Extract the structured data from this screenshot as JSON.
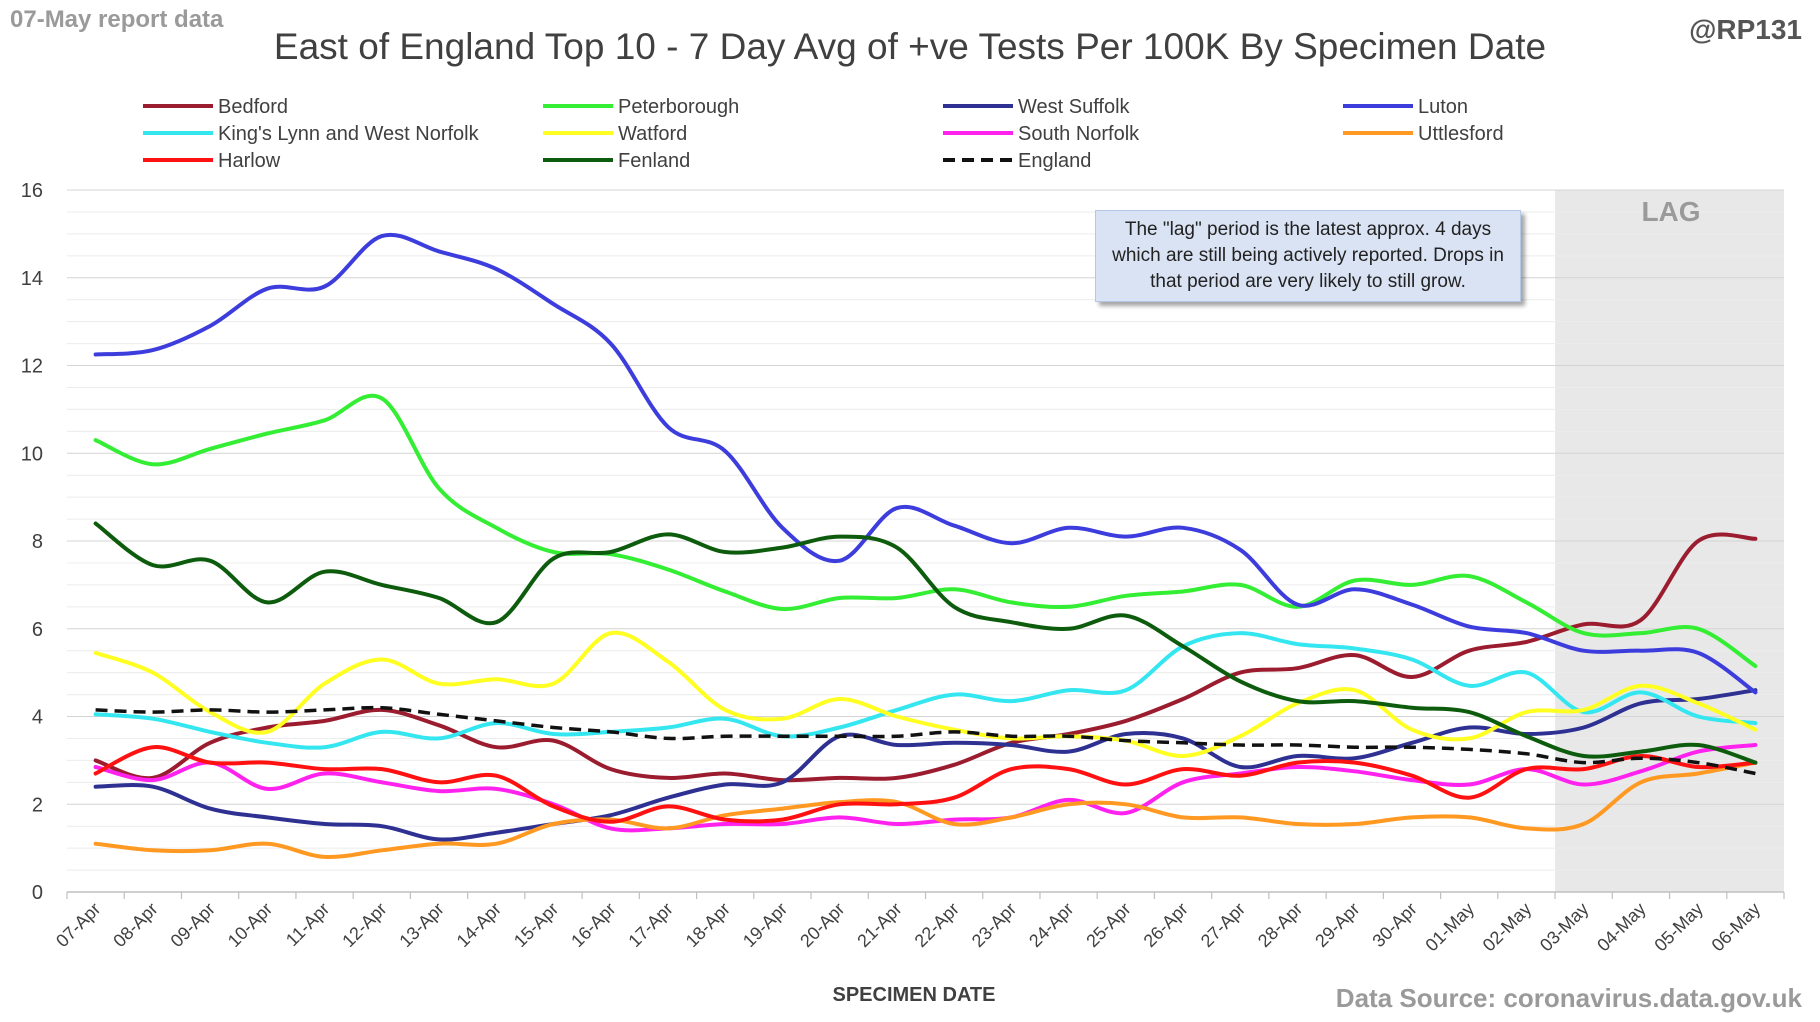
{
  "header": {
    "report_date": "07-May report data",
    "title": "East of England Top 10 - 7 Day Avg of +ve Tests Per 100K By Specimen Date",
    "handle": "@RP131"
  },
  "footer": {
    "source": "Data Source: coronavirus.data.gov.uk"
  },
  "annotation": {
    "text": "The \"lag\" period is the latest approx. 4 days which are still being actively reported.  Drops in that period are very likely to still grow."
  },
  "lag": {
    "label": "LAG",
    "start": "03-May",
    "end": "06-May",
    "color": "#e8e8e8"
  },
  "chart_data": {
    "type": "line",
    "title": "East of England Top 10 - 7 Day Avg of +ve Tests Per 100K By Specimen Date",
    "xlabel": "SPECIMEN DATE",
    "ylabel": "",
    "ylim": [
      0,
      16
    ],
    "yticks": [
      0,
      2,
      4,
      6,
      8,
      10,
      12,
      14,
      16
    ],
    "grid": true,
    "legend_position": "top",
    "categories": [
      "07-Apr",
      "08-Apr",
      "09-Apr",
      "10-Apr",
      "11-Apr",
      "12-Apr",
      "13-Apr",
      "14-Apr",
      "15-Apr",
      "16-Apr",
      "17-Apr",
      "18-Apr",
      "19-Apr",
      "20-Apr",
      "21-Apr",
      "22-Apr",
      "23-Apr",
      "24-Apr",
      "25-Apr",
      "26-Apr",
      "27-Apr",
      "28-Apr",
      "29-Apr",
      "30-Apr",
      "01-May",
      "02-May",
      "03-May",
      "04-May",
      "05-May",
      "06-May"
    ],
    "series": [
      {
        "name": "Bedford",
        "color": "#9b1c2e",
        "dashed": false,
        "values": [
          3.0,
          2.6,
          3.4,
          3.75,
          3.9,
          4.15,
          3.8,
          3.3,
          3.45,
          2.8,
          2.6,
          2.7,
          2.55,
          2.6,
          2.6,
          2.9,
          3.4,
          3.6,
          3.9,
          4.4,
          5.0,
          5.1,
          5.4,
          4.9,
          5.5,
          5.7,
          6.1,
          6.2,
          8.0,
          8.05
        ]
      },
      {
        "name": "Peterborough",
        "color": "#33ee33",
        "dashed": false,
        "values": [
          10.3,
          9.75,
          10.1,
          10.45,
          10.75,
          11.25,
          9.2,
          8.3,
          7.75,
          7.7,
          7.35,
          6.85,
          6.45,
          6.7,
          6.7,
          6.9,
          6.6,
          6.5,
          6.75,
          6.85,
          7.0,
          6.5,
          7.1,
          7.0,
          7.2,
          6.6,
          5.9,
          5.9,
          6.0,
          5.15
        ]
      },
      {
        "name": "West Suffolk",
        "color": "#2e3192",
        "dashed": false,
        "values": [
          2.4,
          2.4,
          1.9,
          1.7,
          1.55,
          1.5,
          1.2,
          1.35,
          1.55,
          1.75,
          2.15,
          2.45,
          2.5,
          3.55,
          3.35,
          3.4,
          3.35,
          3.2,
          3.6,
          3.5,
          2.85,
          3.1,
          3.05,
          3.4,
          3.75,
          3.6,
          3.75,
          4.3,
          4.4,
          4.6
        ]
      },
      {
        "name": "Luton",
        "color": "#3d3ddd",
        "dashed": false,
        "values": [
          12.25,
          12.35,
          12.9,
          13.75,
          13.8,
          14.95,
          14.6,
          14.2,
          13.4,
          12.5,
          10.6,
          10.05,
          8.3,
          7.55,
          8.75,
          8.35,
          7.95,
          8.3,
          8.1,
          8.3,
          7.8,
          6.55,
          6.9,
          6.55,
          6.05,
          5.9,
          5.5,
          5.5,
          5.45,
          4.55
        ]
      },
      {
        "name": "King's Lynn and West Norfolk",
        "color": "#33e6f0",
        "dashed": false,
        "values": [
          4.05,
          3.95,
          3.65,
          3.4,
          3.3,
          3.65,
          3.5,
          3.85,
          3.6,
          3.65,
          3.75,
          3.95,
          3.55,
          3.75,
          4.15,
          4.5,
          4.35,
          4.6,
          4.6,
          5.6,
          5.9,
          5.65,
          5.55,
          5.3,
          4.7,
          5.0,
          4.1,
          4.55,
          4.0,
          3.85
        ]
      },
      {
        "name": "Watford",
        "color": "#ffff22",
        "dashed": false,
        "values": [
          5.45,
          5.0,
          4.1,
          3.65,
          4.75,
          5.3,
          4.75,
          4.85,
          4.75,
          5.9,
          5.25,
          4.15,
          3.95,
          4.4,
          4.0,
          3.7,
          3.5,
          3.55,
          3.45,
          3.1,
          3.55,
          4.3,
          4.6,
          3.7,
          3.5,
          4.1,
          4.15,
          4.7,
          4.3,
          3.7
        ]
      },
      {
        "name": "South Norfolk",
        "color": "#ff22ee",
        "dashed": false,
        "values": [
          2.85,
          2.55,
          2.95,
          2.35,
          2.7,
          2.5,
          2.3,
          2.35,
          2.0,
          1.45,
          1.45,
          1.55,
          1.55,
          1.7,
          1.55,
          1.65,
          1.7,
          2.1,
          1.8,
          2.5,
          2.7,
          2.85,
          2.75,
          2.55,
          2.45,
          2.8,
          2.45,
          2.75,
          3.2,
          3.35
        ]
      },
      {
        "name": "Uttlesford",
        "color": "#ff9922",
        "dashed": false,
        "values": [
          1.1,
          0.95,
          0.95,
          1.1,
          0.8,
          0.95,
          1.1,
          1.1,
          1.55,
          1.65,
          1.45,
          1.75,
          1.9,
          2.05,
          2.05,
          1.55,
          1.7,
          2.0,
          2.0,
          1.7,
          1.7,
          1.55,
          1.55,
          1.7,
          1.7,
          1.45,
          1.55,
          2.5,
          2.7,
          2.95
        ]
      },
      {
        "name": "Harlow",
        "color": "#ff1111",
        "dashed": false,
        "values": [
          2.7,
          3.3,
          2.95,
          2.95,
          2.8,
          2.8,
          2.5,
          2.65,
          1.95,
          1.6,
          1.95,
          1.65,
          1.65,
          2.0,
          2.0,
          2.15,
          2.8,
          2.8,
          2.45,
          2.8,
          2.65,
          2.95,
          2.95,
          2.65,
          2.15,
          2.8,
          2.8,
          3.1,
          2.85,
          2.95
        ]
      },
      {
        "name": "Fenland",
        "color": "#0d5c0d",
        "dashed": false,
        "values": [
          8.4,
          7.45,
          7.55,
          6.6,
          7.3,
          7.0,
          6.7,
          6.15,
          7.6,
          7.75,
          8.15,
          7.75,
          7.85,
          8.1,
          7.85,
          6.5,
          6.15,
          6.0,
          6.3,
          5.6,
          4.8,
          4.35,
          4.35,
          4.2,
          4.1,
          3.55,
          3.1,
          3.2,
          3.35,
          2.95
        ]
      },
      {
        "name": "England",
        "color": "#111111",
        "dashed": true,
        "values": [
          4.15,
          4.1,
          4.15,
          4.1,
          4.15,
          4.2,
          4.05,
          3.9,
          3.75,
          3.65,
          3.5,
          3.55,
          3.55,
          3.55,
          3.55,
          3.65,
          3.55,
          3.55,
          3.45,
          3.4,
          3.35,
          3.35,
          3.3,
          3.3,
          3.25,
          3.15,
          2.95,
          3.05,
          2.95,
          2.7
        ]
      }
    ]
  }
}
